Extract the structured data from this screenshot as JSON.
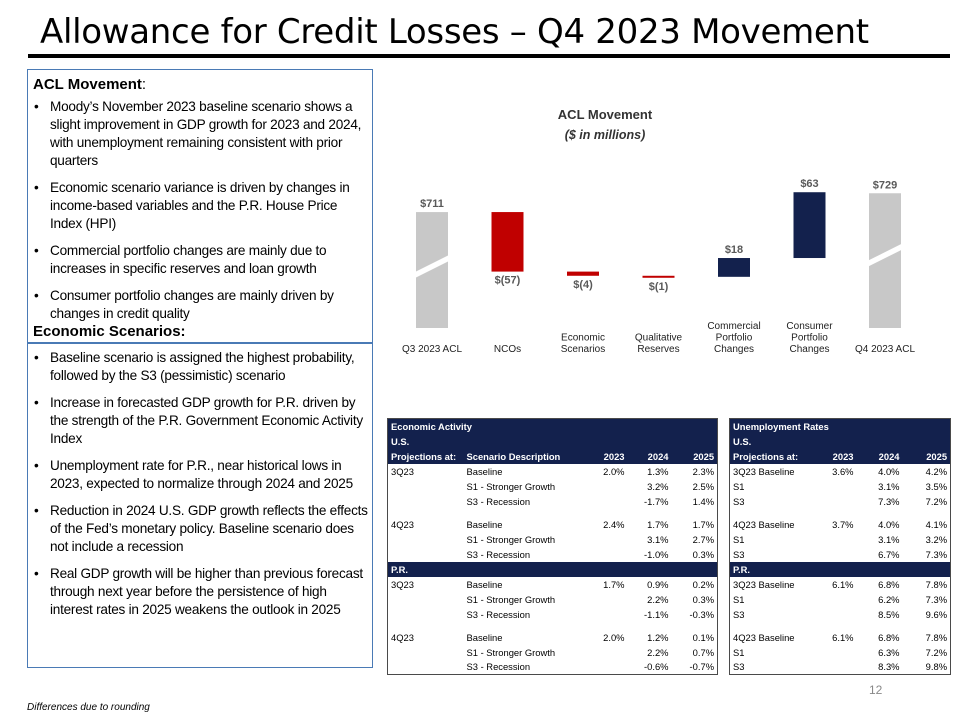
{
  "title": "Allowance for Credit Losses – Q4 2023 Movement",
  "acl_section": {
    "heading": "ACL Movement",
    "bullets": [
      "Moody’s November 2023 baseline scenario shows a slight improvement in GDP growth for 2023  and 2024,  with unemployment remaining consistent with prior quarters",
      "Economic scenario variance is driven by changes in income-based variables and the P.R. House Price Index (HPI)",
      "Commercial portfolio changes are mainly due to increases in specific reserves and loan growth",
      "Consumer portfolio changes are mainly driven by changes in credit quality"
    ]
  },
  "scenarios_section": {
    "heading": "Economic Scenarios:",
    "bullets": [
      "Baseline scenario is assigned the highest probability, followed by the S3 (pessimistic) scenario",
      "Increase in forecasted GDP growth for P.R. driven by the strength of the P.R. Government Economic Activity Index",
      "Unemployment rate for P.R., near historical lows in 2023,  expected to normalize through 2024 and 2025",
      "Reduction in 2024 U.S. GDP growth reflects the effects of the Fed’s monetary policy. Baseline scenario does not include a recession",
      "Real GDP growth will be higher than previous forecast through next year before the persistence of high interest rates in 2025 weakens the outlook in 2025"
    ]
  },
  "chart_data": {
    "type": "bar",
    "subtype": "waterfall",
    "title": "ACL Movement",
    "subtitle": "($ in millions)",
    "categories": [
      "Q3 2023 ACL",
      "NCOs",
      "Economic Scenarios",
      "Qualitative Reserves",
      "Commercial Portfolio Changes",
      "Consumer Portfolio Changes",
      "Q4 2023 ACL"
    ],
    "values": [
      711,
      -57,
      -4,
      -1,
      18,
      63,
      729
    ],
    "data_labels": [
      "$711",
      "$(57)",
      "$(4)",
      "$(1)",
      "$18",
      "$63",
      "$729"
    ],
    "kinds": [
      "total",
      "delta",
      "delta",
      "delta",
      "delta",
      "delta",
      "total"
    ],
    "axis_break": true,
    "ylim": [
      600,
      780
    ],
    "colors": {
      "total": "#c8c8c8",
      "negative": "#c00000",
      "positive": "#13214d"
    }
  },
  "econ_table": {
    "header": "Economic Activity",
    "sections": [
      {
        "region": "U.S.",
        "columns": [
          "Projections at:",
          "Scenario Description",
          "2023",
          "2024",
          "2025"
        ],
        "groups": [
          {
            "rows": [
              [
                "3Q23",
                "Baseline",
                "2.0%",
                "1.3%",
                "2.3%"
              ],
              [
                "",
                "S1 - Stronger Growth",
                "",
                "3.2%",
                "2.5%"
              ],
              [
                "",
                "S3 - Recession",
                "",
                "-1.7%",
                "1.4%"
              ]
            ]
          },
          {
            "rows": [
              [
                "4Q23",
                "Baseline",
                "2.4%",
                "1.7%",
                "1.7%"
              ],
              [
                "",
                "S1 - Stronger Growth",
                "",
                "3.1%",
                "2.7%"
              ],
              [
                "",
                "S3 - Recession",
                "",
                "-1.0%",
                "0.3%"
              ]
            ]
          }
        ]
      },
      {
        "region": "P.R.",
        "groups": [
          {
            "rows": [
              [
                "3Q23",
                "Baseline",
                "1.7%",
                "0.9%",
                "0.2%"
              ],
              [
                "",
                "S1 - Stronger Growth",
                "",
                "2.2%",
                "0.3%"
              ],
              [
                "",
                "S3 - Recession",
                "",
                "-1.1%",
                "-0.3%"
              ]
            ]
          },
          {
            "rows": [
              [
                "4Q23",
                "Baseline",
                "2.0%",
                "1.2%",
                "0.1%"
              ],
              [
                "",
                "S1 - Stronger Growth",
                "",
                "2.2%",
                "0.7%"
              ],
              [
                "",
                "S3 - Recession",
                "",
                "-0.6%",
                "-0.7%"
              ]
            ]
          }
        ]
      }
    ]
  },
  "unemp_table": {
    "header": "Unemployment Rates",
    "sections": [
      {
        "region": "U.S.",
        "columns": [
          "Projections at:",
          "2023",
          "2024",
          "2025"
        ],
        "groups": [
          {
            "rows": [
              [
                "3Q23 Baseline",
                "3.6%",
                "4.0%",
                "4.2%"
              ],
              [
                "S1",
                "",
                "3.1%",
                "3.5%"
              ],
              [
                "S3",
                "",
                "7.3%",
                "7.2%"
              ]
            ]
          },
          {
            "rows": [
              [
                "4Q23 Baseline",
                "3.7%",
                "4.0%",
                "4.1%"
              ],
              [
                "S1",
                "",
                "3.1%",
                "3.2%"
              ],
              [
                "S3",
                "",
                "6.7%",
                "7.3%"
              ]
            ]
          }
        ]
      },
      {
        "region": "P.R.",
        "groups": [
          {
            "rows": [
              [
                "3Q23 Baseline",
                "6.1%",
                "6.8%",
                "7.8%"
              ],
              [
                "S1",
                "",
                "6.2%",
                "7.3%"
              ],
              [
                "S3",
                "",
                "8.5%",
                "9.6%"
              ]
            ]
          },
          {
            "rows": [
              [
                "4Q23 Baseline",
                "6.1%",
                "6.8%",
                "7.8%"
              ],
              [
                "S1",
                "",
                "6.3%",
                "7.2%"
              ],
              [
                "S3",
                "",
                "8.3%",
                "9.8%"
              ]
            ]
          }
        ]
      }
    ]
  },
  "page_number": "12",
  "footnote": "Differences due to rounding"
}
